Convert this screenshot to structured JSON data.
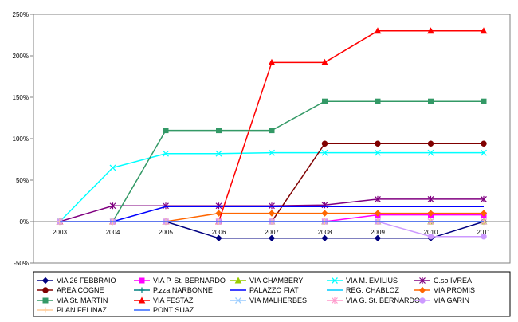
{
  "chart_data": {
    "type": "line",
    "title": "",
    "xlabel": "",
    "ylabel": "",
    "categories": [
      "2003",
      "2004",
      "2005",
      "2006",
      "2007",
      "2008",
      "2009",
      "2010",
      "2011"
    ],
    "y_ticks": [
      "250%",
      "200%",
      "150%",
      "100%",
      "50%",
      "0%",
      "-50%"
    ],
    "ylim": [
      -50,
      250
    ],
    "grid": false,
    "legend_position": "bottom",
    "series": [
      {
        "name": "VIA 26 FEBBRAIO",
        "color": "#000080",
        "marker": "diamond",
        "values": [
          0,
          0,
          0,
          -20,
          -20,
          -20,
          -20,
          -20,
          0
        ]
      },
      {
        "name": "VIA P. St. BERNARDO",
        "color": "#FF00FF",
        "marker": "square",
        "values": [
          0,
          0,
          0,
          0,
          0,
          0,
          8,
          8,
          8
        ]
      },
      {
        "name": "VIA CHAMBERY",
        "color": "#99CC00",
        "marker": "triangle",
        "values": [
          0,
          0,
          0,
          0,
          0,
          0,
          0,
          0,
          0
        ]
      },
      {
        "name": "VIA M. EMILIUS",
        "color": "#00FFFF",
        "marker": "x",
        "values": [
          0,
          65,
          82,
          82,
          83,
          83,
          83,
          83,
          83
        ]
      },
      {
        "name": "C.so IVREA",
        "color": "#800080",
        "marker": "star",
        "values": [
          0,
          19,
          19,
          19,
          19,
          20,
          27,
          27,
          27
        ]
      },
      {
        "name": "AREA COGNE",
        "color": "#800000",
        "marker": "circle",
        "values": [
          0,
          0,
          0,
          0,
          0,
          94,
          94,
          94,
          94
        ]
      },
      {
        "name": "P.zza NARBONNE",
        "color": "#008080",
        "marker": "plus",
        "values": [
          0,
          0,
          0,
          0,
          0,
          0,
          0,
          0,
          0
        ]
      },
      {
        "name": "PALAZZO FIAT",
        "color": "#0000FF",
        "marker": "none",
        "values": [
          0,
          0,
          18,
          18,
          18,
          18,
          18,
          18,
          18
        ]
      },
      {
        "name": "REG. CHABLOZ",
        "color": "#00CCFF",
        "marker": "none",
        "values": [
          0,
          0,
          0,
          0,
          0,
          0,
          0,
          0,
          0
        ]
      },
      {
        "name": "VIA PROMIS",
        "color": "#FF6600",
        "marker": "diamond",
        "values": [
          0,
          0,
          0,
          10,
          10,
          10,
          10,
          10,
          10
        ]
      },
      {
        "name": "VIA St. MARTIN",
        "color": "#339966",
        "marker": "square",
        "values": [
          0,
          0,
          110,
          110,
          110,
          145,
          145,
          145,
          145
        ]
      },
      {
        "name": "VIA FESTAZ",
        "color": "#FF0000",
        "marker": "triangle",
        "values": [
          0,
          0,
          0,
          0,
          192,
          192,
          230,
          230,
          230
        ]
      },
      {
        "name": "VIA MALHERBES",
        "color": "#99CCFF",
        "marker": "x",
        "values": [
          0,
          0,
          0,
          0,
          0,
          0,
          0,
          0,
          0
        ]
      },
      {
        "name": "VIA G. St. BERNARDO",
        "color": "#FF99CC",
        "marker": "star",
        "values": [
          0,
          0,
          0,
          0,
          0,
          0,
          0,
          0,
          0
        ]
      },
      {
        "name": "VIA GARIN",
        "color": "#CC99FF",
        "marker": "circle",
        "values": [
          0,
          0,
          0,
          0,
          0,
          0,
          0,
          -18,
          -18
        ]
      },
      {
        "name": "PLAN FELINAZ",
        "color": "#FFCC99",
        "marker": "plus",
        "values": [
          0,
          0,
          0,
          0,
          0,
          0,
          0,
          0,
          0
        ]
      },
      {
        "name": "PONT SUAZ",
        "color": "#3366FF",
        "marker": "none",
        "values": [
          0,
          0,
          0,
          0,
          0,
          0,
          0,
          0,
          0
        ]
      }
    ]
  }
}
